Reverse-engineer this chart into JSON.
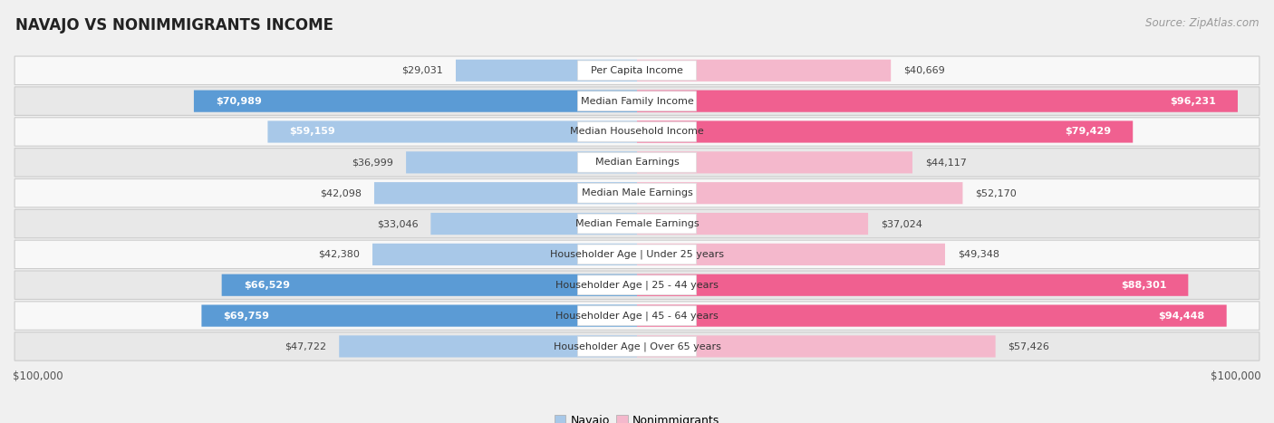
{
  "title": "NAVAJO VS NONIMMIGRANTS INCOME",
  "source": "Source: ZipAtlas.com",
  "categories": [
    "Per Capita Income",
    "Median Family Income",
    "Median Household Income",
    "Median Earnings",
    "Median Male Earnings",
    "Median Female Earnings",
    "Householder Age | Under 25 years",
    "Householder Age | 25 - 44 years",
    "Householder Age | 45 - 64 years",
    "Householder Age | Over 65 years"
  ],
  "navajo_values": [
    29031,
    70989,
    59159,
    36999,
    42098,
    33046,
    42380,
    66529,
    69759,
    47722
  ],
  "nonimmigrant_values": [
    40669,
    96231,
    79429,
    44117,
    52170,
    37024,
    49348,
    88301,
    94448,
    57426
  ],
  "max_value": 100000,
  "navajo_color_light": "#a8c8e8",
  "navajo_color_dark": "#5b9bd5",
  "nonimmigrant_color_light": "#f4b8cc",
  "nonimmigrant_color_dark": "#f06090",
  "bg_color": "#f0f0f0",
  "row_bg_light": "#f8f8f8",
  "row_bg_dark": "#e8e8e8",
  "center_label_bg": "#ffffff",
  "label_font_size": 8.0,
  "title_font_size": 12,
  "source_font_size": 8.5,
  "axis_label_font_size": 8.5,
  "legend_font_size": 9,
  "navajo_dark_indices": [
    1,
    7,
    8
  ],
  "nonimmigrant_dark_indices": [
    1,
    2,
    7,
    8
  ],
  "navajo_inside_threshold": 52000,
  "nonimmigrant_inside_threshold": 72000
}
